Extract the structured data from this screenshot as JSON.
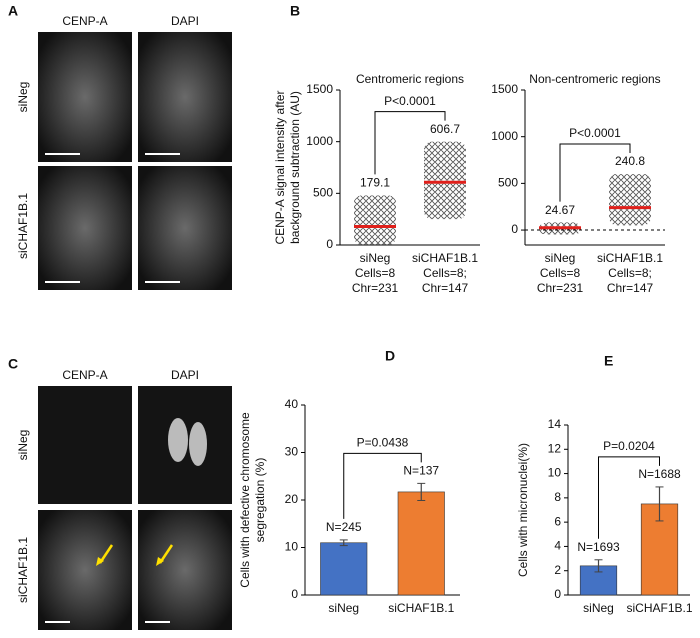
{
  "panels": {
    "A": {
      "label": "A",
      "columns": [
        "CENP-A",
        "DAPI"
      ],
      "rows": [
        "siNeg",
        "siCHAF1B.1"
      ]
    },
    "B": {
      "label": "B"
    },
    "C": {
      "label": "C",
      "columns": [
        "CENP-A",
        "DAPI"
      ],
      "rows": [
        "siNeg",
        "siCHAF1B.1"
      ]
    },
    "D": {
      "label": "D"
    },
    "E": {
      "label": "E"
    }
  },
  "chart_data": [
    {
      "type": "strip",
      "title": "Centromeric regions",
      "ylabel": [
        "CENP-A signal intensity after",
        "background subtraction (AU)"
      ],
      "categories": [
        "siNeg",
        "siCHAF1B.1"
      ],
      "category_notes": [
        [
          "Cells=8",
          "Chr=231"
        ],
        [
          "Cells=8;",
          "Chr=147"
        ]
      ],
      "values": [
        179.1,
        606.7
      ],
      "value_labels": [
        "179.1",
        "606.7"
      ],
      "ranges": [
        [
          0,
          480
        ],
        [
          250,
          1000
        ]
      ],
      "mean_color": "#e0201b",
      "significance": "P<0.0001",
      "ylim": [
        0,
        1500
      ],
      "yticks": [
        0,
        500,
        1000,
        1500
      ]
    },
    {
      "type": "strip",
      "title": "Non-centromeric regions",
      "categories": [
        "siNeg",
        "siCHAF1B.1"
      ],
      "category_notes": [
        [
          "Cells=8",
          "Chr=231"
        ],
        [
          "Cells=8;",
          "Chr=147"
        ]
      ],
      "values": [
        24.67,
        240.8
      ],
      "value_labels": [
        "24.67",
        "240.8"
      ],
      "ranges": [
        [
          -50,
          80
        ],
        [
          50,
          600
        ]
      ],
      "mean_color": "#e0201b",
      "significance": "P<0.0001",
      "hline": 0,
      "ylim": [
        -160,
        1500
      ],
      "yticks": [
        0,
        500,
        1000,
        1500
      ]
    },
    {
      "type": "bar",
      "ylabel": [
        "Cells with defective chromosome",
        "segregation (%)"
      ],
      "categories": [
        "siNeg",
        "siCHAF1B.1"
      ],
      "values": [
        11,
        21.7
      ],
      "errors": [
        0.6,
        1.8
      ],
      "colors": [
        "#4472c4",
        "#ed7d31"
      ],
      "bar_labels": [
        "N=245",
        "N=137"
      ],
      "significance": "P=0.0438",
      "ylim": [
        0,
        40
      ],
      "yticks": [
        0,
        10,
        20,
        30,
        40
      ]
    },
    {
      "type": "bar",
      "ylabel": [
        "Cells with micronuclei(%)"
      ],
      "categories": [
        "siNeg",
        "siCHAF1B.1"
      ],
      "values": [
        2.4,
        7.5
      ],
      "errors": [
        0.5,
        1.4
      ],
      "colors": [
        "#4472c4",
        "#ed7d31"
      ],
      "bar_labels": [
        "N=1693",
        "N=1688"
      ],
      "significance": "P=0.0204",
      "ylim": [
        0,
        14
      ],
      "yticks": [
        0,
        2,
        4,
        6,
        8,
        10,
        12,
        14
      ]
    }
  ]
}
